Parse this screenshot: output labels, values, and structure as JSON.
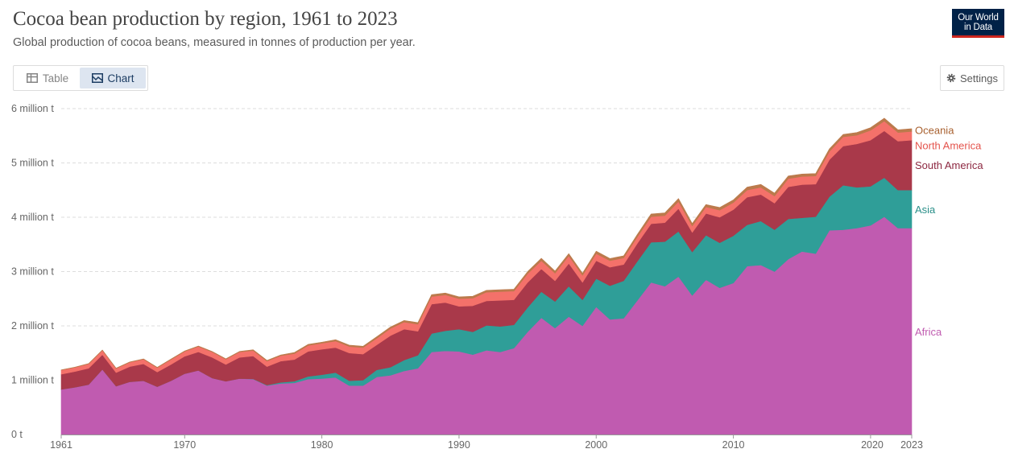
{
  "header": {
    "title": "Cocoa bean production by region, 1961 to 2023",
    "subtitle": "Global production of cocoa beans, measured in tonnes of production per year."
  },
  "logo": {
    "line1": "Our World",
    "line2": "in Data",
    "bg_color": "#002147",
    "accent_color": "#ce261e"
  },
  "controls": {
    "tab_table": "Table",
    "tab_chart": "Chart",
    "active_tab": "Chart",
    "settings": "Settings",
    "icons": {
      "table": "table-icon",
      "chart": "chart-icon",
      "settings": "gear-icon"
    }
  },
  "chart_data": {
    "type": "area",
    "stacked": true,
    "title": "Cocoa bean production by region, 1961 to 2023",
    "xlim": [
      1961,
      2023
    ],
    "ylim": [
      0,
      6000000
    ],
    "y_ticks": [
      0,
      1000000,
      2000000,
      3000000,
      4000000,
      5000000,
      6000000
    ],
    "y_tick_labels": [
      "0 t",
      "1 million t",
      "2 million t",
      "3 million t",
      "4 million t",
      "5 million t",
      "6 million t"
    ],
    "x_ticks": [
      1961,
      1970,
      1980,
      1990,
      2000,
      2010,
      2020,
      2023
    ],
    "x_tick_labels": [
      "1961",
      "1970",
      "1980",
      "1990",
      "2000",
      "2010",
      "2020",
      "2023"
    ],
    "grid": "horizontal dashed",
    "legend_placement": "right, inline labels",
    "x": [
      1961,
      1962,
      1963,
      1964,
      1965,
      1966,
      1967,
      1968,
      1969,
      1970,
      1971,
      1972,
      1973,
      1974,
      1975,
      1976,
      1977,
      1978,
      1979,
      1980,
      1981,
      1982,
      1983,
      1984,
      1985,
      1986,
      1987,
      1988,
      1989,
      1990,
      1991,
      1992,
      1993,
      1994,
      1995,
      1996,
      1997,
      1998,
      1999,
      2000,
      2001,
      2002,
      2003,
      2004,
      2005,
      2006,
      2007,
      2008,
      2009,
      2010,
      2011,
      2012,
      2013,
      2014,
      2015,
      2016,
      2017,
      2018,
      2019,
      2020,
      2021,
      2022,
      2023
    ],
    "series": [
      {
        "name": "Africa",
        "color": "#c05bb0",
        "values": [
          830000,
          870000,
          920000,
          1200000,
          890000,
          970000,
          990000,
          880000,
          990000,
          1120000,
          1180000,
          1040000,
          980000,
          1030000,
          1020000,
          900000,
          940000,
          950000,
          1020000,
          1030000,
          1050000,
          900000,
          900000,
          1060000,
          1090000,
          1170000,
          1220000,
          1520000,
          1540000,
          1530000,
          1470000,
          1550000,
          1520000,
          1590000,
          1890000,
          2150000,
          1960000,
          2170000,
          2000000,
          2350000,
          2120000,
          2140000,
          2470000,
          2800000,
          2730000,
          2910000,
          2560000,
          2850000,
          2700000,
          2790000,
          3100000,
          3120000,
          3000000,
          3230000,
          3370000,
          3330000,
          3760000,
          3770000,
          3800000,
          3850000,
          4010000,
          3800000,
          3800000
        ]
      },
      {
        "name": "Asia",
        "color": "#2f9e98",
        "values": [
          0,
          0,
          0,
          0,
          0,
          0,
          0,
          0,
          0,
          0,
          0,
          0,
          0,
          0,
          5000,
          10000,
          20000,
          30000,
          50000,
          70000,
          90000,
          90000,
          100000,
          130000,
          150000,
          200000,
          240000,
          340000,
          370000,
          410000,
          420000,
          460000,
          470000,
          430000,
          450000,
          480000,
          490000,
          560000,
          480000,
          520000,
          620000,
          690000,
          720000,
          740000,
          820000,
          830000,
          800000,
          820000,
          830000,
          870000,
          760000,
          810000,
          770000,
          740000,
          620000,
          680000,
          620000,
          820000,
          750000,
          720000,
          720000,
          700000,
          700000
        ]
      },
      {
        "name": "South America",
        "color": "#a9394a",
        "values": [
          280000,
          290000,
          300000,
          270000,
          250000,
          280000,
          310000,
          270000,
          300000,
          320000,
          340000,
          380000,
          310000,
          390000,
          420000,
          340000,
          390000,
          400000,
          460000,
          470000,
          460000,
          510000,
          480000,
          460000,
          580000,
          570000,
          440000,
          540000,
          520000,
          420000,
          480000,
          450000,
          480000,
          460000,
          460000,
          420000,
          380000,
          420000,
          320000,
          330000,
          340000,
          300000,
          330000,
          340000,
          350000,
          420000,
          360000,
          400000,
          470000,
          480000,
          510000,
          490000,
          490000,
          590000,
          610000,
          600000,
          680000,
          720000,
          800000,
          850000,
          860000,
          900000,
          920000
        ]
      },
      {
        "name": "North America",
        "color": "#f4716a",
        "values": [
          75000,
          75000,
          80000,
          80000,
          75000,
          80000,
          85000,
          80000,
          90000,
          90000,
          100000,
          100000,
          95000,
          100000,
          100000,
          100000,
          100000,
          110000,
          110000,
          110000,
          120000,
          120000,
          120000,
          120000,
          130000,
          130000,
          130000,
          140000,
          140000,
          140000,
          140000,
          160000,
          160000,
          160000,
          160000,
          150000,
          140000,
          140000,
          130000,
          130000,
          120000,
          120000,
          120000,
          130000,
          130000,
          130000,
          120000,
          120000,
          130000,
          130000,
          130000,
          130000,
          130000,
          150000,
          150000,
          150000,
          150000,
          170000,
          160000,
          180000,
          180000,
          160000,
          160000
        ]
      },
      {
        "name": "Oceania",
        "color": "#bb7a4c",
        "values": [
          5000,
          5000,
          6000,
          6000,
          6000,
          7000,
          7000,
          7000,
          8000,
          8000,
          10000,
          10000,
          10000,
          10000,
          15000,
          15000,
          15000,
          20000,
          20000,
          20000,
          25000,
          25000,
          25000,
          30000,
          30000,
          30000,
          30000,
          35000,
          35000,
          35000,
          35000,
          35000,
          35000,
          35000,
          40000,
          45000,
          40000,
          40000,
          40000,
          45000,
          40000,
          40000,
          45000,
          50000,
          50000,
          55000,
          45000,
          45000,
          50000,
          50000,
          55000,
          55000,
          55000,
          50000,
          45000,
          45000,
          50000,
          45000,
          50000,
          50000,
          55000,
          50000,
          50000
        ]
      }
    ]
  }
}
